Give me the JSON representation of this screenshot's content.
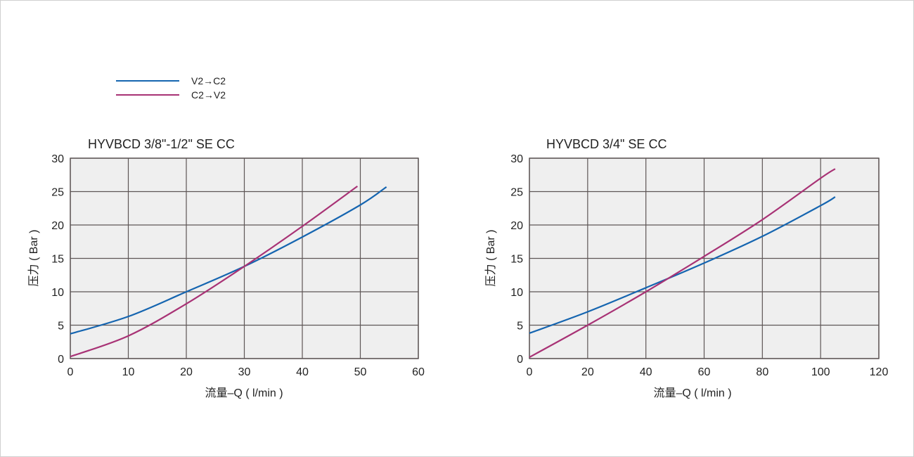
{
  "legend": [
    {
      "label": "V2→C2",
      "color": "#1565b0"
    },
    {
      "label": "C2→V2",
      "color": "#a83275"
    }
  ],
  "chart_data": [
    {
      "type": "line",
      "title": "HYVBCD 3/8\"-1/2\" SE CC",
      "xlabel": "流量–Q ( l/min )",
      "ylabel": "压力 ( Bar )",
      "xlim": [
        0,
        60
      ],
      "ylim": [
        0,
        30
      ],
      "xticks": [
        0,
        10,
        20,
        30,
        40,
        50,
        60
      ],
      "yticks": [
        0,
        5,
        10,
        15,
        20,
        25,
        30
      ],
      "grid": true,
      "series": [
        {
          "name": "V2→C2",
          "color": "#1565b0",
          "x": [
            0,
            10,
            20,
            30,
            40,
            50,
            54.5
          ],
          "y": [
            3.7,
            6.3,
            10,
            13.8,
            18.2,
            23,
            25.7
          ]
        },
        {
          "name": "C2→V2",
          "color": "#a83275",
          "x": [
            0,
            10,
            20,
            30,
            40,
            49.5
          ],
          "y": [
            0.3,
            3.4,
            8.2,
            13.8,
            19.8,
            25.8
          ]
        }
      ]
    },
    {
      "type": "line",
      "title": "HYVBCD 3/4\" SE CC",
      "xlabel": "流量–Q ( l/min )",
      "ylabel": "压力 ( Bar )",
      "xlim": [
        0,
        120
      ],
      "ylim": [
        0,
        30
      ],
      "xticks": [
        0,
        20,
        40,
        60,
        80,
        100,
        120
      ],
      "yticks": [
        0,
        5,
        10,
        15,
        20,
        25,
        30
      ],
      "grid": true,
      "series": [
        {
          "name": "V2→C2",
          "color": "#1565b0",
          "x": [
            0,
            20,
            40,
            60,
            80,
            100,
            105
          ],
          "y": [
            3.8,
            7,
            10.6,
            14.3,
            18.3,
            22.9,
            24.2
          ]
        },
        {
          "name": "C2→V2",
          "color": "#a83275",
          "x": [
            0,
            20,
            40,
            60,
            80,
            100,
            105
          ],
          "y": [
            0.2,
            5,
            10,
            15.3,
            20.8,
            27,
            28.4
          ]
        }
      ]
    }
  ]
}
